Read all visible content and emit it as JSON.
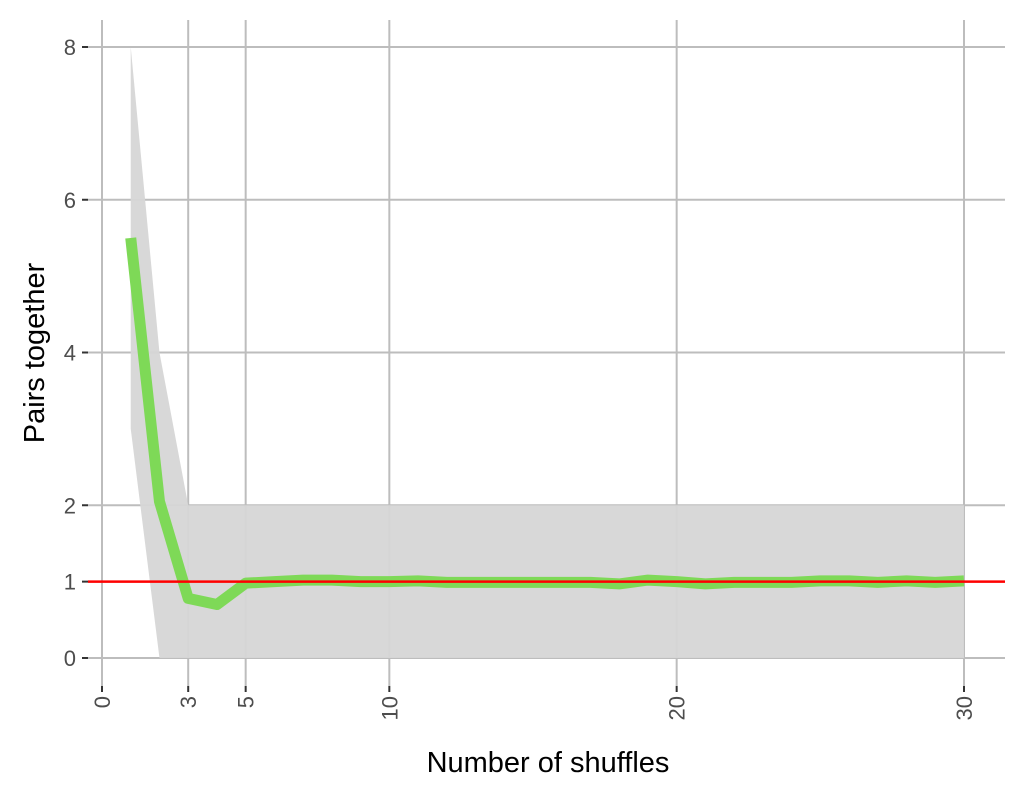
{
  "chart_data": {
    "type": "line",
    "title": "",
    "xlabel": "Number of shuffles",
    "ylabel": "Pairs together",
    "xlim": [
      0,
      30
    ],
    "ylim": [
      0,
      8
    ],
    "x_ticks": [
      0,
      3,
      5,
      10,
      20,
      30
    ],
    "y_ticks": [
      0,
      1,
      2,
      4,
      6,
      8
    ],
    "grid": true,
    "x": [
      1,
      2,
      3,
      4,
      5,
      6,
      7,
      8,
      9,
      10,
      11,
      12,
      13,
      14,
      15,
      16,
      17,
      18,
      19,
      20,
      21,
      22,
      23,
      24,
      25,
      26,
      27,
      28,
      29,
      30
    ],
    "series": [
      {
        "values": [
          5.5,
          2.05,
          0.78,
          0.7,
          0.98,
          1.0,
          1.02,
          1.02,
          1.0,
          1.0,
          1.01,
          0.99,
          0.99,
          0.99,
          0.99,
          0.99,
          0.99,
          0.97,
          1.02,
          1.0,
          0.97,
          0.99,
          0.99,
          0.99,
          1.01,
          1.01,
          0.99,
          1.01,
          0.99,
          1.01
        ],
        "color": "#7ed957"
      }
    ],
    "ribbon": {
      "lower": [
        3,
        0,
        0,
        0,
        0,
        0,
        0,
        0,
        0,
        0,
        0,
        0,
        0,
        0,
        0,
        0,
        0,
        0,
        0,
        0,
        0,
        0,
        0,
        0,
        0,
        0,
        0,
        0,
        0,
        0
      ],
      "upper": [
        8,
        4,
        2,
        2,
        2,
        2,
        2,
        2,
        2,
        2,
        2,
        2,
        2,
        2,
        2,
        2,
        2,
        2,
        2,
        2,
        2,
        2,
        2,
        2,
        2,
        2,
        2,
        2,
        2,
        2
      ],
      "color": "#d6d6d6"
    },
    "reference_line": {
      "y": 1,
      "color": "#ff0000"
    }
  }
}
